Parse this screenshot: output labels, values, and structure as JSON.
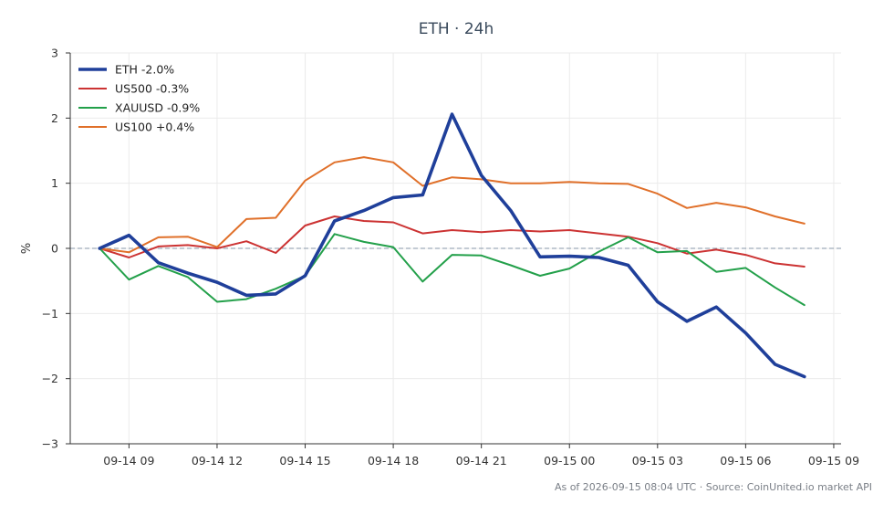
{
  "chart_data": {
    "type": "line",
    "title": "ETH · 24h",
    "xlabel": "",
    "ylabel": "%",
    "ylim": [
      -3,
      3
    ],
    "yticks": [
      3,
      2,
      1,
      0,
      -1,
      -2,
      -3
    ],
    "ytick_labels": [
      "3",
      "2",
      "1",
      "0",
      "−1",
      "−2",
      "−3"
    ],
    "x": [
      "2026-09-14 08:00",
      "2026-09-14 09:00",
      "2026-09-14 10:00",
      "2026-09-14 11:00",
      "2026-09-14 12:00",
      "2026-09-14 13:00",
      "2026-09-14 14:00",
      "2026-09-14 15:00",
      "2026-09-14 16:00",
      "2026-09-14 17:00",
      "2026-09-14 18:00",
      "2026-09-14 19:00",
      "2026-09-14 20:00",
      "2026-09-14 21:00",
      "2026-09-14 22:00",
      "2026-09-14 23:00",
      "2026-09-15 00:00",
      "2026-09-15 01:00",
      "2026-09-15 02:00",
      "2026-09-15 03:00",
      "2026-09-15 04:00",
      "2026-09-15 05:00",
      "2026-09-15 06:00",
      "2026-09-15 07:00",
      "2026-09-15 08:00"
    ],
    "xlim": [
      "2026-09-14 07:00",
      "2026-09-15 09:15"
    ],
    "xticks": [
      "2026-09-14 09:00",
      "2026-09-14 12:00",
      "2026-09-14 15:00",
      "2026-09-14 18:00",
      "2026-09-14 21:00",
      "2026-09-15 00:00",
      "2026-09-15 03:00",
      "2026-09-15 06:00",
      "2026-09-15 09:00"
    ],
    "xtick_labels": [
      "09-14 09",
      "09-14 12",
      "09-14 15",
      "09-14 18",
      "09-14 21",
      "09-15 00",
      "09-15 03",
      "09-15 06",
      "09-15 09"
    ],
    "grid": true,
    "legend_position": "top-left",
    "zero_line": "dashed",
    "series": [
      {
        "name": "ETH -2.0%",
        "color": "#1f3f9a",
        "width": "thick",
        "values": [
          0,
          0.2,
          -0.22,
          -0.38,
          -0.52,
          -0.72,
          -0.7,
          -0.42,
          0.42,
          0.58,
          0.78,
          0.82,
          2.06,
          1.12,
          0.58,
          -0.13,
          -0.12,
          -0.14,
          -0.26,
          -0.82,
          -1.12,
          -0.9,
          -1.3,
          -1.78,
          -1.97
        ]
      },
      {
        "name": "US500 -0.3%",
        "color": "#cc3333",
        "width": "normal",
        "values": [
          0,
          -0.14,
          0.03,
          0.05,
          0.0,
          0.11,
          -0.07,
          0.35,
          0.49,
          0.42,
          0.4,
          0.23,
          0.28,
          0.25,
          0.28,
          0.26,
          0.28,
          0.23,
          0.18,
          0.08,
          -0.08,
          -0.02,
          -0.1,
          -0.23,
          -0.28
        ]
      },
      {
        "name": "XAUUSD -0.9%",
        "color": "#23a04a",
        "width": "normal",
        "values": [
          0,
          -0.48,
          -0.27,
          -0.44,
          -0.82,
          -0.78,
          -0.62,
          -0.42,
          0.22,
          0.1,
          0.02,
          -0.51,
          -0.1,
          -0.11,
          -0.26,
          -0.42,
          -0.31,
          -0.05,
          0.17,
          -0.06,
          -0.04,
          -0.36,
          -0.3,
          -0.6,
          -0.87
        ]
      },
      {
        "name": "US100 +0.4%",
        "color": "#e0702a",
        "width": "normal",
        "values": [
          0,
          -0.06,
          0.17,
          0.18,
          0.02,
          0.45,
          0.47,
          1.04,
          1.32,
          1.4,
          1.32,
          0.96,
          1.09,
          1.06,
          1.0,
          1.0,
          1.02,
          1.0,
          0.99,
          0.84,
          0.62,
          0.7,
          0.63,
          0.49,
          0.38
        ]
      }
    ]
  },
  "footer": "As of 2026-09-15 08:04 UTC · Source: CoinUnited.io market API"
}
